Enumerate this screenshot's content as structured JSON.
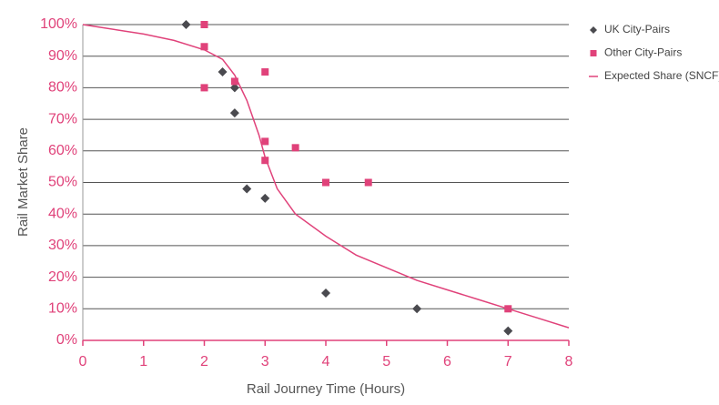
{
  "chart_data": {
    "type": "scatter",
    "xlabel": "Rail Journey Time (Hours)",
    "ylabel": "Rail Market Share",
    "xlim": [
      0,
      8
    ],
    "xticks": [
      0,
      1,
      2,
      3,
      4,
      5,
      6,
      7,
      8
    ],
    "ylim": [
      0,
      100
    ],
    "yticks": [
      {
        "value": 0,
        "label": "0%"
      },
      {
        "value": 10,
        "label": "10%"
      },
      {
        "value": 20,
        "label": "20%"
      },
      {
        "value": 30,
        "label": "30%"
      },
      {
        "value": 40,
        "label": "40%"
      },
      {
        "value": 50,
        "label": "50%"
      },
      {
        "value": 60,
        "label": "60%"
      },
      {
        "value": 70,
        "label": "70%"
      },
      {
        "value": 80,
        "label": "80%"
      },
      {
        "value": 90,
        "label": "90%"
      },
      {
        "value": 100,
        "label": "100%"
      }
    ],
    "grid": true,
    "legend": "right",
    "series": [
      {
        "name": "UK City-Pairs",
        "color": "#4a4a4f",
        "marker": "diamond",
        "x": [
          1.7,
          2.3,
          2.5,
          2.5,
          2.7,
          3,
          4,
          5.5,
          7
        ],
        "values": [
          100,
          85,
          80,
          72,
          48,
          45,
          15,
          10,
          3
        ]
      },
      {
        "name": "Other City-Pairs",
        "color": "#e0427a",
        "marker": "square",
        "x": [
          2,
          2,
          2,
          2.5,
          3,
          3,
          3,
          3.5,
          4,
          4.7,
          7
        ],
        "values": [
          100,
          93,
          80,
          82,
          85,
          63,
          57,
          61,
          50,
          50,
          10
        ]
      },
      {
        "name": "Expected Share (SNCF)",
        "color": "#e0427a",
        "marker": "line",
        "x": [
          0,
          1,
          1.5,
          2,
          2.3,
          2.5,
          2.7,
          2.9,
          3,
          3.2,
          3.5,
          4,
          4.5,
          5,
          5.5,
          6,
          6.5,
          7,
          7.5,
          8
        ],
        "values": [
          100,
          97,
          95,
          92,
          89,
          84,
          76,
          65,
          58,
          48,
          40,
          33,
          27,
          23,
          19,
          16,
          13,
          10,
          7,
          4
        ]
      }
    ]
  }
}
